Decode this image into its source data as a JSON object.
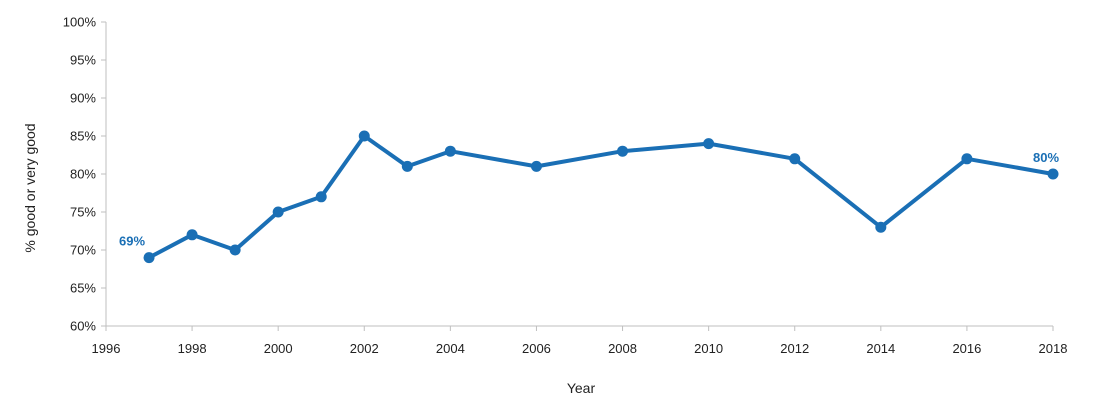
{
  "chart_data": {
    "type": "line",
    "title": "",
    "xlabel": "Year",
    "ylabel": "% good or very good",
    "xlim": [
      1996,
      2018
    ],
    "ylim": [
      60,
      100
    ],
    "x_ticks": [
      "1996",
      "1998",
      "2000",
      "2002",
      "2004",
      "2006",
      "2008",
      "2010",
      "2012",
      "2014",
      "2016",
      "2018"
    ],
    "y_ticks": [
      "60%",
      "65%",
      "70%",
      "75%",
      "80%",
      "85%",
      "90%",
      "95%",
      "100%"
    ],
    "grid": false,
    "color": "#1a6fb5",
    "series": [
      {
        "x": [
          1997,
          1998,
          1999,
          2000,
          2001,
          2002,
          2003,
          2004,
          2006,
          2008,
          2010,
          2012,
          2014,
          2016,
          2018
        ],
        "values": [
          69,
          72,
          70,
          75,
          77,
          85,
          81,
          83,
          81,
          83,
          84,
          82,
          73,
          82,
          80
        ]
      }
    ],
    "annotations": [
      {
        "x": 1997,
        "y": 69,
        "text": "69%"
      },
      {
        "x": 2018,
        "y": 80,
        "text": "80%"
      }
    ]
  }
}
